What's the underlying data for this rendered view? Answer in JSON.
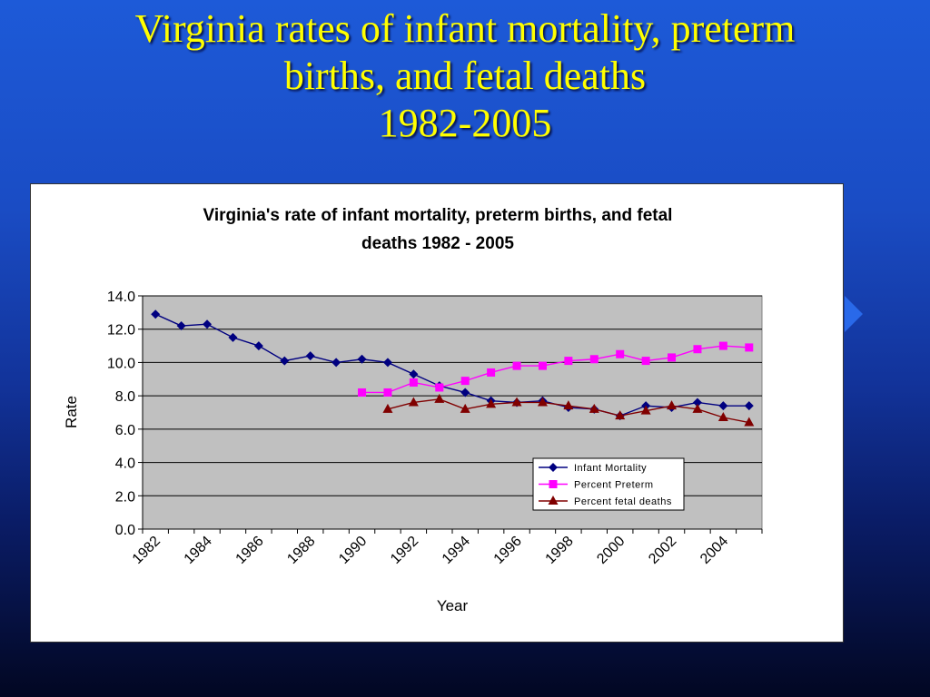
{
  "slide": {
    "title_lines": [
      "Virginia rates of infant mortality, preterm",
      "births, and fetal deaths",
      "1982-2005"
    ]
  },
  "colors": {
    "title": "#ffff00",
    "infant": "#000080",
    "preterm": "#ff00ff",
    "fetal": "#800000",
    "plot_bg": "#c0c0c0"
  },
  "chart_data": {
    "type": "line",
    "title_lines": [
      "Virginia's rate of infant mortality, preterm births, and fetal",
      "deaths 1982 - 2005"
    ],
    "xlabel": "Year",
    "ylabel": "Rate",
    "ylim": [
      0,
      14
    ],
    "yticks": [
      "0.0",
      "2.0",
      "4.0",
      "6.0",
      "8.0",
      "10.0",
      "12.0",
      "14.0"
    ],
    "x": [
      1982,
      1983,
      1984,
      1985,
      1986,
      1987,
      1988,
      1989,
      1990,
      1991,
      1992,
      1993,
      1994,
      1995,
      1996,
      1997,
      1998,
      1999,
      2000,
      2001,
      2002,
      2003,
      2004,
      2005
    ],
    "xtick_labels": [
      "1982",
      "1984",
      "1986",
      "1988",
      "1990",
      "1992",
      "1994",
      "1996",
      "1998",
      "2000",
      "2002",
      "2004"
    ],
    "grid": true,
    "legend_position": "lower-right",
    "series": [
      {
        "name": "Infant Mortality",
        "marker": "diamond",
        "color": "#000080",
        "values": [
          12.9,
          12.2,
          12.3,
          11.5,
          11.0,
          10.1,
          10.4,
          10.0,
          10.2,
          10.0,
          9.3,
          8.6,
          8.2,
          7.7,
          7.6,
          7.7,
          7.3,
          7.2,
          6.8,
          7.4,
          7.3,
          7.6,
          7.4,
          7.4
        ]
      },
      {
        "name": "Percent Preterm",
        "marker": "square",
        "color": "#ff00ff",
        "values": [
          null,
          null,
          null,
          null,
          null,
          null,
          null,
          null,
          8.2,
          8.2,
          8.8,
          8.5,
          8.9,
          9.4,
          9.8,
          9.8,
          10.1,
          10.2,
          10.5,
          10.1,
          10.3,
          10.8,
          11.0,
          10.9
        ]
      },
      {
        "name": "Percent fetal deaths",
        "marker": "triangle",
        "color": "#800000",
        "values": [
          null,
          null,
          null,
          null,
          null,
          null,
          null,
          null,
          null,
          7.2,
          7.6,
          7.8,
          7.2,
          7.5,
          7.6,
          7.6,
          7.4,
          7.2,
          6.8,
          7.1,
          7.4,
          7.2,
          6.7,
          6.4
        ]
      }
    ]
  }
}
